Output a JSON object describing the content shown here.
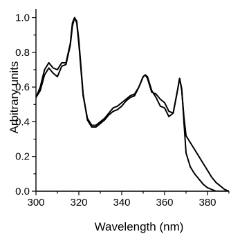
{
  "chart_data": {
    "type": "line",
    "title": "",
    "xlabel": "Wavelength (nm)",
    "ylabel": "Arbitrary units",
    "xlim": [
      300,
      390
    ],
    "ylim": [
      0.0,
      1.05
    ],
    "xticks": [
      300,
      320,
      340,
      360,
      380
    ],
    "yticks": [
      0.0,
      0.2,
      0.4,
      0.6,
      0.8,
      1.0
    ],
    "xtick_labels": [
      "300",
      "320",
      "340",
      "360",
      "380"
    ],
    "ytick_labels": [
      "0.0",
      "0.2",
      "0.4",
      "0.6",
      "0.8",
      "1.0"
    ],
    "grid": false,
    "legend": false,
    "series": [
      {
        "color": "#000000",
        "x": [
          300,
          302,
          304,
          306,
          308,
          310,
          312,
          314,
          316,
          317,
          318,
          319,
          320,
          322,
          324,
          326,
          328,
          330,
          332,
          334,
          336,
          338,
          340,
          342,
          344,
          346,
          348,
          350,
          351,
          352,
          354,
          356,
          358,
          360,
          362,
          364,
          366,
          367,
          368,
          369,
          370,
          372,
          374,
          376,
          378,
          380,
          382,
          384,
          386,
          388,
          390
        ],
        "y": [
          0.54,
          0.6,
          0.7,
          0.74,
          0.71,
          0.7,
          0.74,
          0.74,
          0.85,
          0.97,
          1.0,
          0.97,
          0.85,
          0.55,
          0.42,
          0.38,
          0.38,
          0.4,
          0.42,
          0.45,
          0.48,
          0.49,
          0.51,
          0.53,
          0.55,
          0.56,
          0.6,
          0.66,
          0.67,
          0.65,
          0.57,
          0.56,
          0.53,
          0.51,
          0.46,
          0.45,
          0.58,
          0.65,
          0.58,
          0.43,
          0.32,
          0.28,
          0.24,
          0.2,
          0.16,
          0.12,
          0.08,
          0.05,
          0.03,
          0.01,
          0.0
        ]
      },
      {
        "color": "#000000",
        "x": [
          300,
          302,
          304,
          306,
          308,
          310,
          312,
          314,
          316,
          317,
          318,
          319,
          320,
          322,
          324,
          326,
          328,
          330,
          332,
          334,
          336,
          338,
          340,
          342,
          344,
          346,
          348,
          350,
          351,
          352,
          354,
          356,
          358,
          360,
          362,
          364,
          366,
          367,
          368,
          369,
          370,
          372,
          374,
          376,
          378,
          380,
          382,
          384,
          386,
          388,
          390
        ],
        "y": [
          0.54,
          0.58,
          0.67,
          0.71,
          0.68,
          0.66,
          0.72,
          0.73,
          0.84,
          0.95,
          1.0,
          0.98,
          0.87,
          0.56,
          0.41,
          0.37,
          0.37,
          0.39,
          0.41,
          0.44,
          0.46,
          0.47,
          0.49,
          0.52,
          0.54,
          0.55,
          0.6,
          0.66,
          0.67,
          0.66,
          0.58,
          0.54,
          0.49,
          0.48,
          0.43,
          0.45,
          0.58,
          0.65,
          0.59,
          0.4,
          0.22,
          0.14,
          0.1,
          0.07,
          0.04,
          0.02,
          0.01,
          0.0,
          0.0,
          0.0,
          0.0
        ]
      }
    ]
  }
}
